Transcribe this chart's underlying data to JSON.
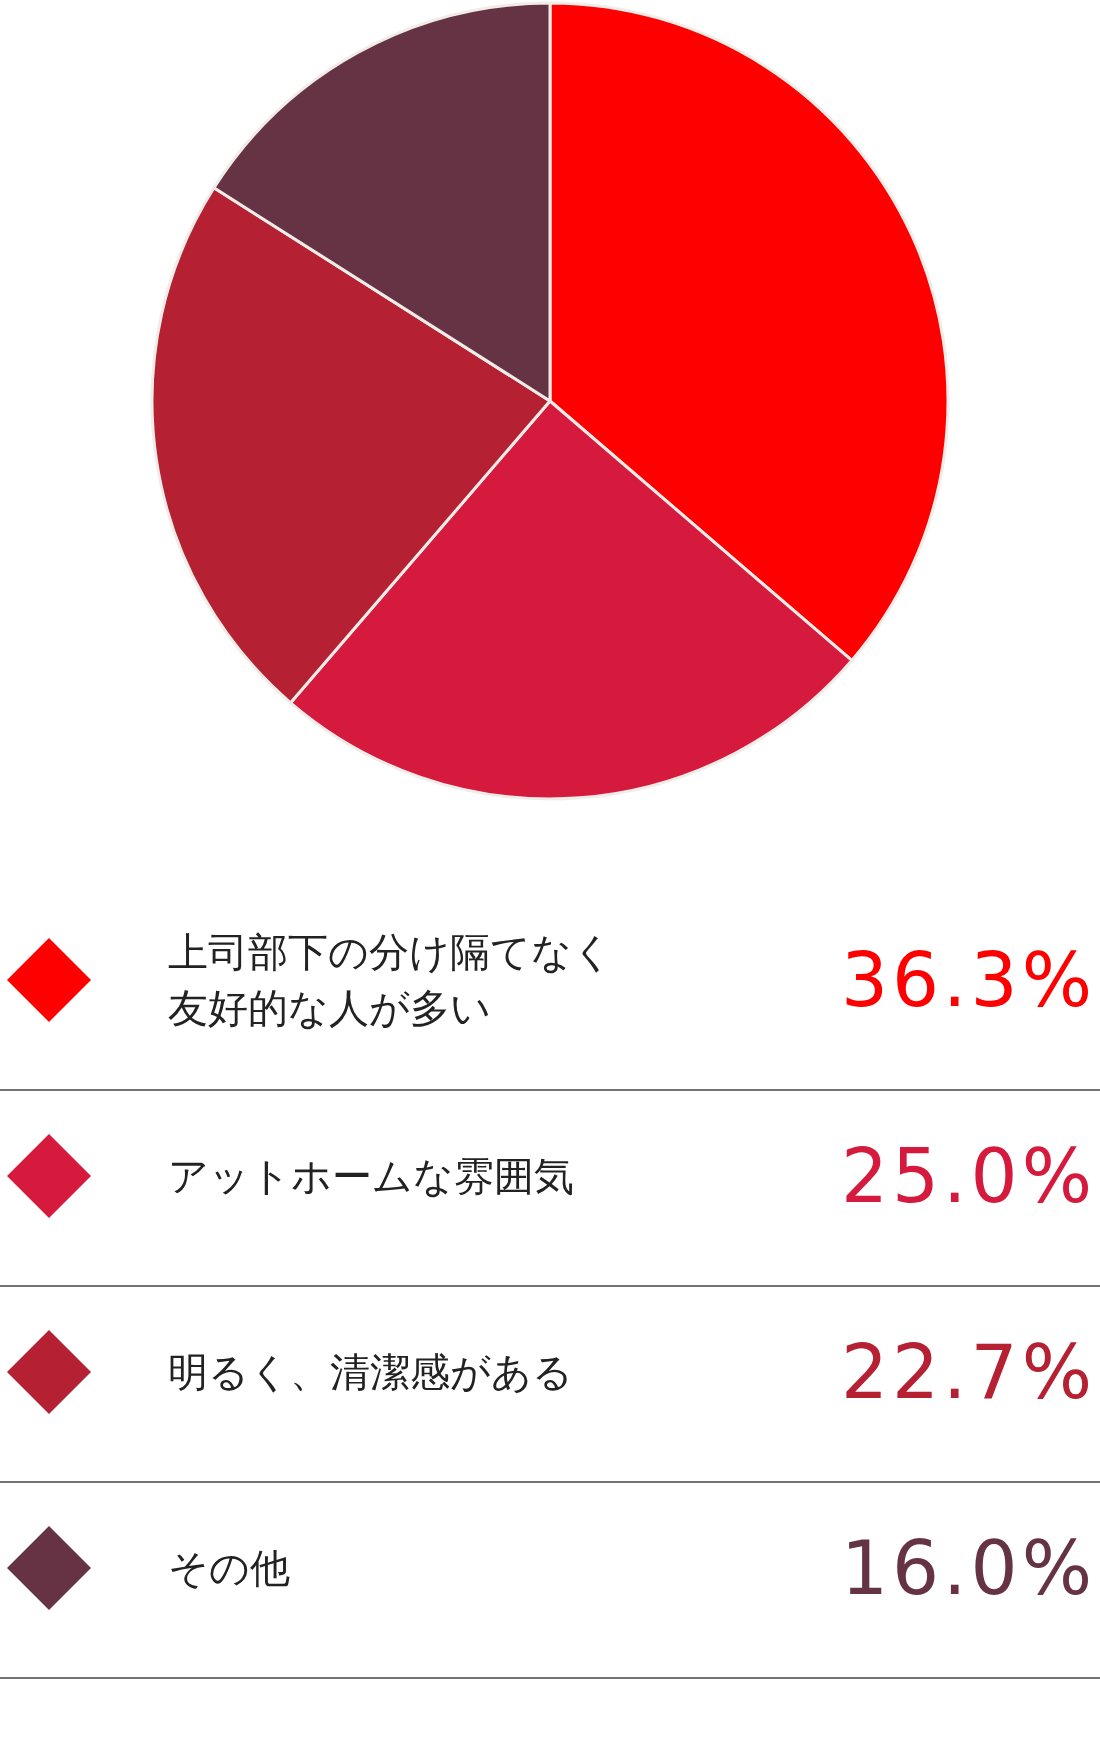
{
  "chart_data": {
    "type": "pie",
    "categories": [
      "上司部下の分け隔てなく友好的な人が多い",
      "アットホームな雰囲気",
      "明るく、清潔感がある",
      "その他"
    ],
    "values": [
      36.3,
      25.0,
      22.7,
      16.0
    ],
    "colors": [
      "#fe0000",
      "#d51a3e",
      "#b52032",
      "#663345"
    ],
    "value_labels": [
      "36.3%",
      "25.0%",
      "22.7%",
      "16.0%"
    ],
    "legend": "bottom"
  }
}
